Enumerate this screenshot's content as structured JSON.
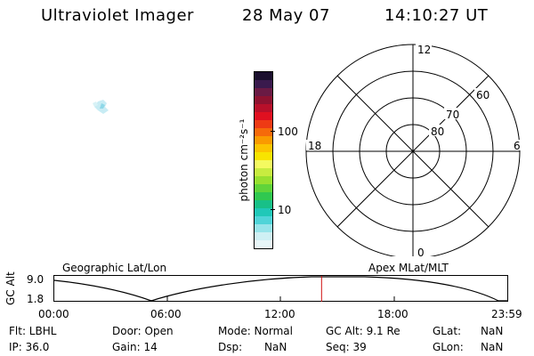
{
  "header": {
    "title": "Ultraviolet Imager",
    "date": "28 May 07",
    "time": "14:10:27 UT"
  },
  "colorbar": {
    "label": "photon cm⁻²s⁻¹",
    "ticks": [
      "100",
      "10"
    ],
    "colors": [
      "#1b0f2e",
      "#3a1a4d",
      "#6a1a44",
      "#8e1230",
      "#b8102a",
      "#e01020",
      "#ee3a14",
      "#f66a0a",
      "#fa9a00",
      "#fcc400",
      "#f8e400",
      "#f4fa60",
      "#c8ec40",
      "#98e030",
      "#60d43a",
      "#30c850",
      "#18c088",
      "#20c8b8",
      "#50d4d8",
      "#98e4ea",
      "#cff0f4",
      "#e8f6f8"
    ]
  },
  "polar_plot": {
    "labels": {
      "top": "12",
      "bottom": "0",
      "left": "18",
      "right": "6"
    },
    "rings": [
      "80",
      "70",
      "60"
    ]
  },
  "timeline": {
    "left_title": "Geographic Lat/Lon",
    "right_title": "Apex MLat/MLT",
    "ylabel": "GC Alt",
    "y_ticks": [
      "9.0",
      "1.8"
    ],
    "x_ticks": [
      "00:00",
      "06:00",
      "12:00",
      "18:00",
      "23:59"
    ],
    "current_time_fraction": 0.59
  },
  "info": {
    "row1": {
      "flt": "Flt: LBHL",
      "door": "Door: Open",
      "mode": "Mode: Normal",
      "gc_alt": "GC Alt: 9.1 Re",
      "glat_label": "GLat:",
      "glat_val": "NaN"
    },
    "row2": {
      "ip": "IP: 36.0",
      "gain": "Gain: 14",
      "dsp_label": "Dsp:",
      "dsp_val": "NaN",
      "seq": "Seq: 39",
      "glon_label": "GLon:",
      "glon_val": "NaN"
    }
  }
}
